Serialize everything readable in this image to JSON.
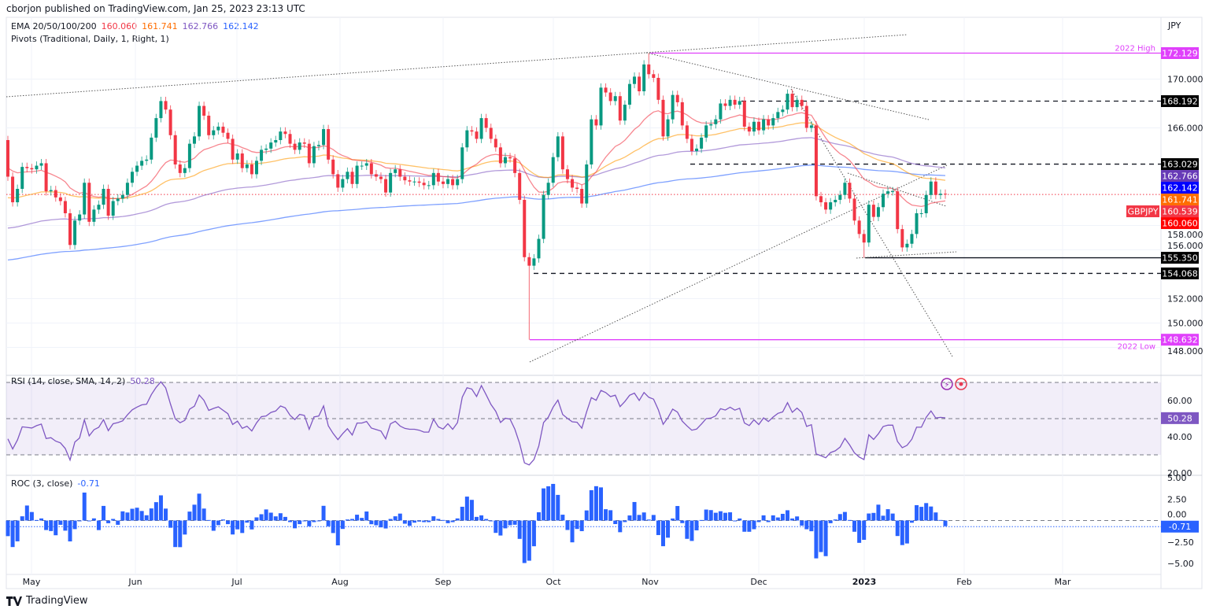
{
  "header": {
    "publisher": "cborjon published on TradingView.com, Jan 25, 2023 23:13 UTC",
    "currency": "JPY",
    "ema_legend": {
      "label": "EMA 20/50/100/200",
      "values": [
        "160.060",
        "161.741",
        "162.766",
        "162.142"
      ]
    },
    "pivots_legend": "Pivots (Traditional, Daily, 1, Right, 1)"
  },
  "colors": {
    "up": "#089981",
    "down": "#f23645",
    "ema20": "#f23645",
    "ema50": "#ff9800",
    "ema100": "#7e57c2",
    "ema200": "#2962ff",
    "level_high_low": "#e040fb",
    "rsi": "#7e57c2",
    "roc": "#2962ff"
  },
  "chart_data": [
    {
      "type": "candlestick",
      "symbol": "GBPJPY",
      "timeframe": "daily",
      "x_ticks": [
        "May",
        "Jun",
        "Jul",
        "Aug",
        "Sep",
        "Oct",
        "Nov",
        "Dec",
        "2023",
        "Feb",
        "Mar"
      ],
      "y_ticks": [
        "170.000",
        "166.000",
        "158.000",
        "156.000",
        "152.000",
        "150.000",
        "148.000"
      ],
      "ylim": [
        147,
        173.5
      ],
      "first_open": 165.0,
      "closes": [
        162.0,
        159.9,
        161.0,
        162.8,
        162.7,
        162.6,
        162.9,
        163.1,
        160.8,
        160.9,
        160.3,
        160.0,
        159.0,
        156.4,
        158.4,
        158.9,
        161.5,
        158.3,
        159.3,
        159.7,
        161.0,
        158.8,
        160.0,
        160.2,
        160.5,
        161.5,
        162.4,
        162.9,
        163.3,
        163.4,
        165.2,
        166.8,
        168.2,
        167.5,
        165.4,
        163.0,
        162.3,
        162.7,
        164.7,
        165.3,
        167.8,
        167.0,
        165.4,
        165.8,
        166.1,
        165.6,
        165.1,
        163.4,
        163.9,
        162.7,
        163.0,
        162.2,
        163.3,
        164.2,
        164.3,
        164.8,
        165.0,
        165.7,
        165.5,
        164.7,
        164.2,
        164.8,
        164.7,
        163.1,
        164.5,
        164.6,
        165.9,
        163.4,
        162.2,
        161.1,
        161.8,
        162.4,
        161.4,
        162.9,
        162.9,
        163.1,
        162.2,
        162.0,
        161.8,
        160.7,
        162.3,
        162.6,
        162.0,
        161.7,
        161.6,
        161.6,
        161.5,
        161.3,
        161.3,
        162.3,
        161.6,
        161.4,
        161.8,
        161.3,
        161.8,
        164.4,
        165.8,
        165.7,
        165.1,
        166.8,
        166.0,
        165.1,
        164.4,
        163.1,
        163.6,
        163.5,
        162.3,
        160.1,
        155.4,
        154.7,
        155.3,
        156.9,
        160.5,
        161.5,
        163.6,
        165.3,
        162.6,
        161.8,
        161.1,
        161.0,
        159.8,
        163.0,
        166.7,
        166.2,
        169.3,
        168.9,
        168.2,
        168.6,
        166.6,
        167.9,
        169.6,
        170.2,
        169.0,
        171.2,
        170.4,
        170.1,
        168.3,
        165.3,
        166.7,
        168.7,
        168.1,
        166.2,
        165.1,
        164.1,
        164.3,
        165.2,
        166.2,
        166.3,
        166.7,
        168.0,
        167.8,
        168.3,
        167.9,
        168.2,
        166.1,
        165.7,
        166.5,
        165.8,
        166.7,
        166.2,
        166.8,
        167.3,
        167.5,
        168.8,
        167.7,
        168.3,
        167.8,
        166.0,
        166.2,
        160.4,
        159.9,
        159.3,
        159.9,
        160.1,
        160.5,
        161.5,
        160.2,
        158.4,
        157.3,
        156.6,
        159.7,
        158.7,
        159.5,
        160.6,
        160.8,
        160.8,
        157.7,
        156.2,
        156.5,
        157.3,
        159.0,
        159.0,
        160.5,
        161.6,
        160.5,
        160.6,
        160.539
      ],
      "extreme_wicks": [
        {
          "i": 109,
          "low": 148.632
        },
        {
          "i": 134,
          "high": 172.129
        },
        {
          "i": 179,
          "low": 155.35
        }
      ],
      "ema_start": {
        "ema20": 162.8,
        "ema50": 160.2,
        "ema100": 157.7,
        "ema200": 155.1
      },
      "levels": [
        {
          "price": 172.129,
          "label": "2022 High",
          "style": "solid",
          "color": "#e040fb"
        },
        {
          "price": 168.192,
          "style": "dashed",
          "color": "#131722"
        },
        {
          "price": 163.029,
          "style": "dashed",
          "color": "#131722"
        },
        {
          "price": 155.35,
          "style": "solid",
          "color": "#131722"
        },
        {
          "price": 154.068,
          "style": "dashed",
          "color": "#131722"
        },
        {
          "price": 148.632,
          "label": "2022 Low",
          "style": "solid",
          "color": "#e040fb"
        }
      ],
      "price_labels": [
        {
          "text": "172.129",
          "price": 172.129,
          "bg": "#e040fb"
        },
        {
          "text": "168.192",
          "price": 168.192,
          "bg": "#000000"
        },
        {
          "text": "163.029",
          "price": 163.029,
          "bg": "#000000"
        },
        {
          "text": "162.766",
          "price": 162.766,
          "bg": "#673ab7"
        },
        {
          "text": "162.142",
          "price": 162.142,
          "bg": "#0000ff"
        },
        {
          "text": "161.741",
          "price": 161.741,
          "bg": "#ff6d00"
        },
        {
          "text": "160.539",
          "price": 160.539,
          "bg": "#f23645"
        },
        {
          "text": "160.060",
          "price": 160.06,
          "bg": "#ff0000"
        },
        {
          "text": "155.350",
          "price": 155.35,
          "bg": "#000000"
        },
        {
          "text": "154.068",
          "price": 154.068,
          "bg": "#000000"
        },
        {
          "text": "148.632",
          "price": 148.632,
          "bg": "#e040fb"
        }
      ],
      "symbol_tag": "GBPJPY"
    },
    {
      "type": "line",
      "indicator": "RSI",
      "legend": "RSI (14, close, SMA, 14, 2)",
      "last_value": "50.28",
      "y_ticks": [
        "60.00",
        "40.00",
        "20.00"
      ],
      "band": [
        30,
        70
      ],
      "ylim": [
        18,
        72
      ]
    },
    {
      "type": "bar",
      "indicator": "ROC",
      "legend": "ROC (3, close)",
      "last_value": "-0.71",
      "y_ticks": [
        "5.00",
        "2.50",
        "0.00",
        "−2.50",
        "−5.00"
      ],
      "ylim": [
        -5.5,
        5.5
      ]
    }
  ],
  "footer": {
    "brand": "TradingView"
  }
}
